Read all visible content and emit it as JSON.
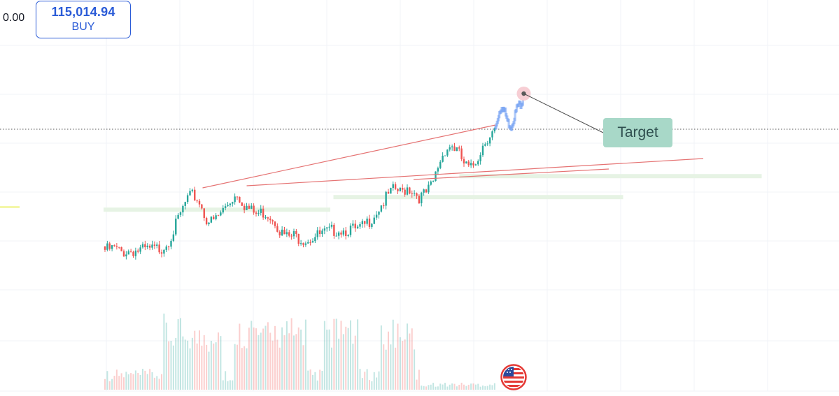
{
  "left_price_label": "0.00",
  "order_button": {
    "price": "115,014.94",
    "side": "BUY"
  },
  "annotation": {
    "label": "Target"
  },
  "flag_icon": "us-flag-icon",
  "colors": {
    "up": "#26a69a",
    "down": "#ef5350",
    "trendline": "#e57373",
    "zone": "#e6f3e4",
    "projection": "#6e9cf2",
    "target_box": "#a8d8c8",
    "buy_accent": "#2a5bd7",
    "grid": "#f0f3f7"
  },
  "chart_data": {
    "type": "candlestick",
    "grid": true,
    "x_range": [
      0,
      130
    ],
    "y_range": [
      40,
      100
    ],
    "price_path": [
      [
        0,
        52.5
      ],
      [
        3,
        52.8
      ],
      [
        5,
        51.9
      ],
      [
        8,
        52.3
      ],
      [
        12,
        52.4
      ],
      [
        16,
        52.6
      ],
      [
        18,
        53.0
      ],
      [
        20,
        54.5
      ],
      [
        22,
        57.5
      ],
      [
        24,
        61.0
      ],
      [
        26,
        64.5
      ],
      [
        28,
        65.5
      ],
      [
        30,
        64.0
      ],
      [
        32,
        60.0
      ],
      [
        34,
        59.0
      ],
      [
        36,
        60.5
      ],
      [
        38,
        62.5
      ],
      [
        40,
        64.5
      ],
      [
        42,
        66.0
      ],
      [
        44,
        63.5
      ],
      [
        46,
        62.0
      ],
      [
        48,
        61.0
      ],
      [
        50,
        61.5
      ],
      [
        52,
        61.0
      ],
      [
        54,
        59.5
      ],
      [
        56,
        56.5
      ],
      [
        58,
        55.5
      ],
      [
        60,
        55.8
      ],
      [
        62,
        55.3
      ],
      [
        64,
        55.0
      ],
      [
        66,
        55.5
      ],
      [
        68,
        56.0
      ],
      [
        70,
        56.5
      ],
      [
        72,
        57.0
      ],
      [
        74,
        57.5
      ],
      [
        76,
        57.2
      ],
      [
        78,
        57.5
      ],
      [
        80,
        57.0
      ],
      [
        82,
        58.0
      ],
      [
        84,
        59.5
      ],
      [
        86,
        61.5
      ],
      [
        88,
        63.5
      ],
      [
        90,
        65.5
      ],
      [
        92,
        67.0
      ],
      [
        94,
        66.0
      ],
      [
        96,
        67.5
      ],
      [
        98,
        66.5
      ],
      [
        100,
        65.0
      ],
      [
        102,
        66.0
      ],
      [
        104,
        68.0
      ],
      [
        106,
        73.0
      ],
      [
        108,
        76.5
      ],
      [
        110,
        77.5
      ],
      [
        112,
        76.0
      ],
      [
        114,
        73.0
      ],
      [
        116,
        71.5
      ],
      [
        118,
        74.0
      ],
      [
        120,
        77.5
      ],
      [
        122,
        80.0
      ],
      [
        124,
        81.0
      ]
    ],
    "projection": [
      [
        124,
        81.0
      ],
      [
        125,
        84.5
      ],
      [
        126,
        86.5
      ],
      [
        127,
        85.0
      ],
      [
        128,
        82.5
      ],
      [
        129,
        81.5
      ],
      [
        130,
        84.0
      ],
      [
        131,
        86.5
      ],
      [
        132,
        87.0
      ],
      [
        133,
        88.5
      ]
    ],
    "target_point": [
      133,
      89.0
    ],
    "trendlines": [
      {
        "from": [
          31,
          66.5
        ],
        "to": [
          124,
          81.5
        ]
      },
      {
        "from": [
          45,
          67.0
        ],
        "to": [
          190,
          73.5
        ]
      },
      {
        "from": [
          98,
          68.5
        ],
        "to": [
          160,
          71.0
        ]
      }
    ],
    "zones": [
      {
        "x": [
          0,
          72
        ],
        "y": [
          60.8,
          61.8
        ]
      },
      {
        "x": [
          73,
          165
        ],
        "y": [
          63.8,
          64.8
        ]
      },
      {
        "x": [
          113,
          209
        ],
        "y": [
          68.8,
          69.8
        ]
      }
    ],
    "dotted_level": 80.5,
    "volume_spike_x": [
      24,
      31,
      47,
      58,
      75,
      93
    ]
  }
}
